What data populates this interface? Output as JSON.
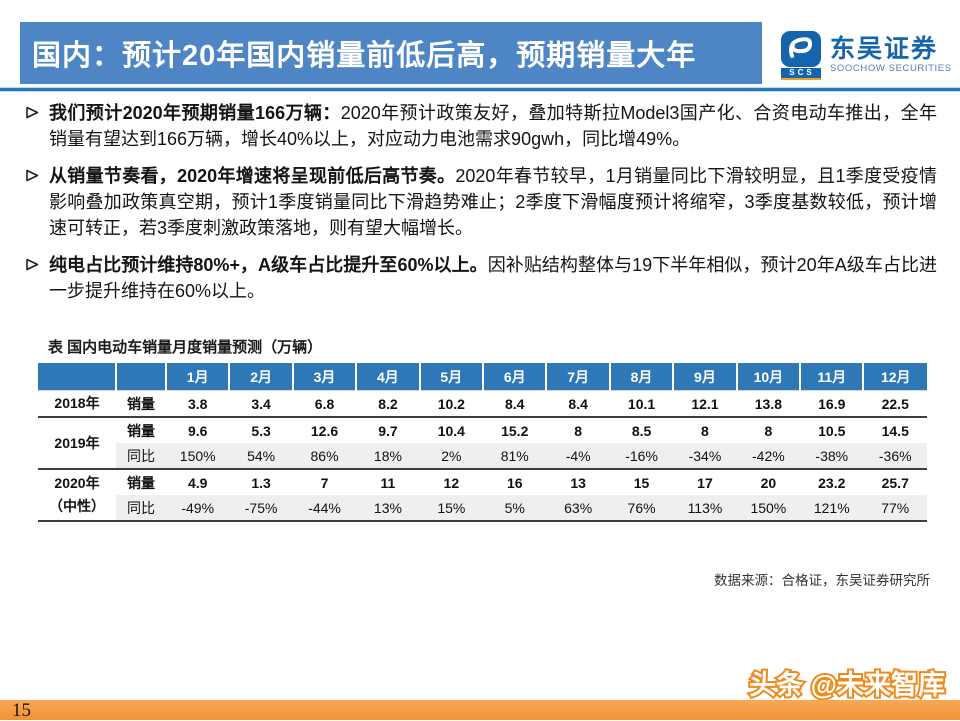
{
  "header": {
    "title": "国内：预计20年国内销量前低后高，预期销量大年",
    "logo": {
      "abbr": "SCS",
      "name_cn": "东吴证券",
      "name_en": "SOOCHOW SECURITIES"
    }
  },
  "icons": {
    "bullet_marker": "right-arrowhead-outline",
    "logo_mark": "soochow-swirl"
  },
  "bullets": [
    {
      "lead": "我们预计2020年预期销量166万辆：",
      "rest": "2020年预计政策友好，叠加特斯拉Model3国产化、合资电动车推出，全年销量有望达到166万辆，增长40%以上，对应动力电池需求90gwh，同比增49%。"
    },
    {
      "lead": "从销量节奏看，2020年增速将呈现前低后高节奏。",
      "rest": "2020年春节较早，1月销量同比下滑较明显，且1季度受疫情影响叠加政策真空期，预计1季度销量同比下滑趋势难止；2季度下滑幅度预计将缩窄，3季度基数较低，预计增速可转正，若3季度刺激政策落地，则有望大幅增长。"
    },
    {
      "lead": "纯电占比预计维持80%+，A级车占比提升至60%以上。",
      "rest": "因补贴结构整体与19下半年相似，预计20年A级车占比进一步提升维持在60%以上。"
    }
  ],
  "table": {
    "title": "表  国内电动车销量月度销量预测（万辆）",
    "months": [
      "1月",
      "2月",
      "3月",
      "4月",
      "5月",
      "6月",
      "7月",
      "8月",
      "9月",
      "10月",
      "11月",
      "12月"
    ],
    "row_groups": [
      {
        "year_lines": [
          "2018年"
        ],
        "rows": [
          {
            "label": "销量",
            "values": [
              "3.8",
              "3.4",
              "6.8",
              "8.2",
              "10.2",
              "8.4",
              "8.4",
              "10.1",
              "12.1",
              "13.8",
              "16.9",
              "22.5"
            ]
          }
        ]
      },
      {
        "year_lines": [
          "2019年"
        ],
        "rows": [
          {
            "label": "销量",
            "values": [
              "9.6",
              "5.3",
              "12.6",
              "9.7",
              "10.4",
              "15.2",
              "8",
              "8.5",
              "8",
              "8",
              "10.5",
              "14.5"
            ]
          },
          {
            "label": "同比",
            "values": [
              "150%",
              "54%",
              "86%",
              "18%",
              "2%",
              "81%",
              "-4%",
              "-16%",
              "-34%",
              "-42%",
              "-38%",
              "-36%"
            ]
          }
        ]
      },
      {
        "year_lines": [
          "2020年",
          "（中性）"
        ],
        "rows": [
          {
            "label": "销量",
            "values": [
              "4.9",
              "1.3",
              "7",
              "11",
              "12",
              "16",
              "13",
              "15",
              "17",
              "20",
              "23.2",
              "25.7"
            ]
          },
          {
            "label": "同比",
            "values": [
              "-49%",
              "-75%",
              "-44%",
              "13%",
              "15%",
              "5%",
              "63%",
              "76%",
              "113%",
              "150%",
              "121%",
              "77%"
            ]
          }
        ]
      }
    ]
  },
  "source_note": "数据来源：合格证，东吴证券研究所",
  "watermark": "头条 @未来智库",
  "page_number": "15",
  "colors": {
    "title_bar_blue": "#4E86C5",
    "divider_blue": "#2878B5",
    "table_header_blue": "#2E78B8",
    "logo_blue": "#1565AE",
    "footer_orange": "#F19238",
    "watermark_orange": "#EF8A1C",
    "row_stripe_gray": "#EFEFEF"
  }
}
